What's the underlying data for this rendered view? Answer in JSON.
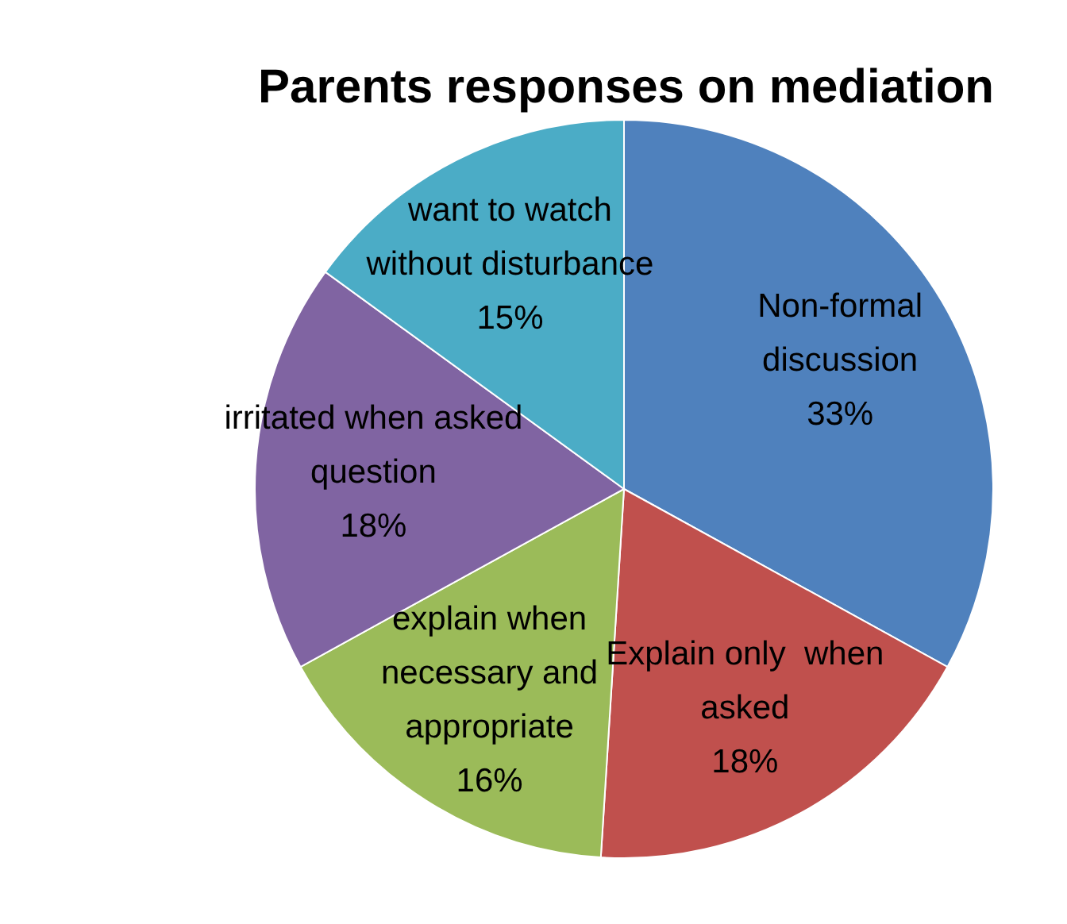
{
  "chart_data": {
    "type": "pie",
    "title": "Parents responses on mediation",
    "categories": [
      "Non-formal discussion",
      "Explain only  when asked",
      "explain when necessary and appropriate",
      "irritated when asked question",
      "want to watch without disturbance"
    ],
    "values": [
      33,
      18,
      16,
      18,
      15
    ],
    "colors": [
      "#4f81bd",
      "#c0504d",
      "#9bbb59",
      "#8064a2",
      "#4bacc6"
    ],
    "value_labels": [
      "33%",
      "18%",
      "16%",
      "18%",
      "15%"
    ],
    "legend": false
  }
}
